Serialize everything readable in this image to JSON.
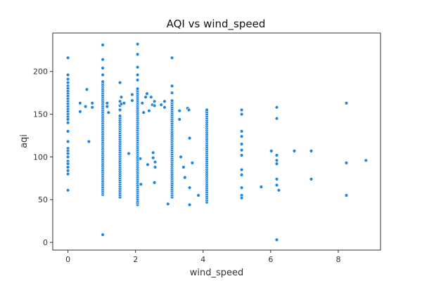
{
  "chart_data": {
    "type": "scatter",
    "title": "AQI vs wind_speed",
    "xlabel": "wind_speed",
    "ylabel": "aqi",
    "xlim": [
      -0.45,
      9.25
    ],
    "ylim": [
      -9,
      245
    ],
    "xticks": [
      0,
      2,
      4,
      6,
      8
    ],
    "yticks": [
      0,
      50,
      100,
      150,
      200
    ],
    "grid": false,
    "marker_color": "#1f87e0",
    "points": [
      [
        0,
        216
      ],
      [
        0,
        196
      ],
      [
        0,
        191
      ],
      [
        0,
        187
      ],
      [
        0,
        183
      ],
      [
        0,
        180
      ],
      [
        0,
        177
      ],
      [
        0,
        174
      ],
      [
        0,
        171
      ],
      [
        0,
        168
      ],
      [
        0,
        165
      ],
      [
        0,
        162
      ],
      [
        0,
        159
      ],
      [
        0,
        156
      ],
      [
        0,
        153
      ],
      [
        0,
        150
      ],
      [
        0,
        147
      ],
      [
        0,
        144
      ],
      [
        0,
        140
      ],
      [
        0,
        130
      ],
      [
        0,
        118
      ],
      [
        0,
        110
      ],
      [
        0,
        107
      ],
      [
        0,
        104
      ],
      [
        0,
        100
      ],
      [
        0,
        95
      ],
      [
        0,
        92
      ],
      [
        0,
        88
      ],
      [
        0,
        84
      ],
      [
        0,
        80
      ],
      [
        0,
        61
      ],
      [
        0.36,
        163
      ],
      [
        0.36,
        153
      ],
      [
        0.52,
        159
      ],
      [
        0.56,
        179
      ],
      [
        0.62,
        118
      ],
      [
        0.72,
        163
      ],
      [
        0.72,
        158
      ],
      [
        1.03,
        231
      ],
      [
        1.03,
        214
      ],
      [
        1.03,
        204
      ],
      [
        1.03,
        196
      ],
      [
        1.03,
        9
      ],
      [
        1.16,
        163
      ],
      [
        1.16,
        159
      ],
      [
        1.2,
        152
      ],
      [
        1.54,
        187
      ],
      [
        1.54,
        165
      ],
      [
        1.54,
        160
      ],
      [
        1.54,
        155
      ],
      [
        1.58,
        170
      ],
      [
        1.58,
        162
      ],
      [
        1.66,
        163
      ],
      [
        1.8,
        104
      ],
      [
        1.9,
        173
      ],
      [
        1.9,
        166
      ],
      [
        2.06,
        232
      ],
      [
        2.06,
        220
      ],
      [
        2.06,
        205
      ],
      [
        2.06,
        196
      ],
      [
        2.06,
        190
      ],
      [
        2.14,
        98
      ],
      [
        2.16,
        68
      ],
      [
        2.2,
        163
      ],
      [
        2.24,
        152
      ],
      [
        2.3,
        170
      ],
      [
        2.34,
        174
      ],
      [
        2.36,
        91
      ],
      [
        2.4,
        154
      ],
      [
        2.46,
        170
      ],
      [
        2.5,
        161
      ],
      [
        2.52,
        105
      ],
      [
        2.52,
        99
      ],
      [
        2.56,
        165
      ],
      [
        2.56,
        160
      ],
      [
        2.56,
        70
      ],
      [
        2.58,
        94
      ],
      [
        2.58,
        88
      ],
      [
        2.76,
        161
      ],
      [
        2.86,
        165
      ],
      [
        2.86,
        158
      ],
      [
        2.96,
        45
      ],
      [
        3.08,
        216
      ],
      [
        3.08,
        183
      ],
      [
        3.08,
        175
      ],
      [
        3.3,
        154
      ],
      [
        3.3,
        144
      ],
      [
        3.34,
        100
      ],
      [
        3.42,
        88
      ],
      [
        3.46,
        76
      ],
      [
        3.54,
        157
      ],
      [
        3.58,
        155
      ],
      [
        3.6,
        122
      ],
      [
        3.6,
        64
      ],
      [
        3.6,
        44
      ],
      [
        3.68,
        93
      ],
      [
        3.86,
        55
      ],
      [
        5.14,
        155
      ],
      [
        5.14,
        150
      ],
      [
        5.14,
        130
      ],
      [
        5.14,
        124
      ],
      [
        5.14,
        115
      ],
      [
        5.14,
        108
      ],
      [
        5.14,
        102
      ],
      [
        5.14,
        85
      ],
      [
        5.14,
        79
      ],
      [
        5.14,
        64
      ],
      [
        5.14,
        55
      ],
      [
        5.14,
        52
      ],
      [
        5.72,
        65
      ],
      [
        6.02,
        107
      ],
      [
        6.18,
        158
      ],
      [
        6.18,
        145
      ],
      [
        6.18,
        102
      ],
      [
        6.18,
        96
      ],
      [
        6.18,
        92
      ],
      [
        6.18,
        74
      ],
      [
        6.18,
        67
      ],
      [
        6.18,
        3
      ],
      [
        6.24,
        61
      ],
      [
        6.7,
        107
      ],
      [
        7.2,
        107
      ],
      [
        7.2,
        74
      ],
      [
        8.24,
        163
      ],
      [
        8.24,
        93
      ],
      [
        8.24,
        55
      ],
      [
        8.82,
        96
      ]
    ],
    "columns": [
      {
        "x": 1.03,
        "y_from": 56,
        "y_to": 189,
        "step": 2.2
      },
      {
        "x": 1.54,
        "y_from": 53,
        "y_to": 148,
        "step": 2.5
      },
      {
        "x": 2.06,
        "y_from": 44,
        "y_to": 180,
        "step": 2.3
      },
      {
        "x": 3.08,
        "y_from": 53,
        "y_to": 166,
        "step": 2.4
      },
      {
        "x": 4.11,
        "y_from": 47,
        "y_to": 157,
        "step": 2.4
      }
    ]
  }
}
